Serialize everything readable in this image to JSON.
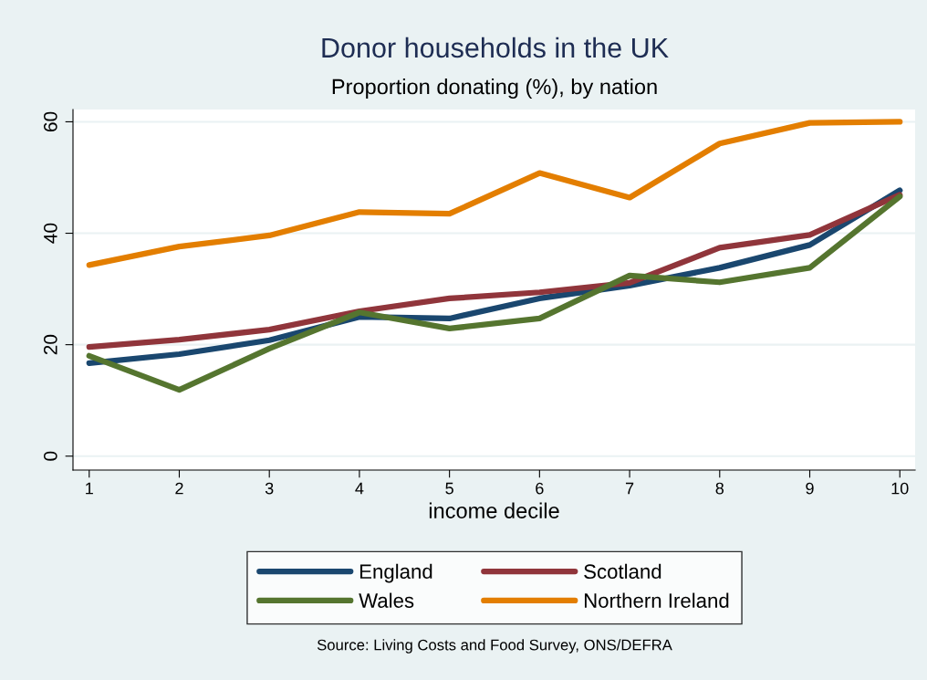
{
  "chart_data": {
    "type": "line",
    "title": "Donor households in the UK",
    "subtitle": "Proportion donating (%), by nation",
    "xlabel": "income decile",
    "x": [
      1,
      2,
      3,
      4,
      5,
      6,
      7,
      8,
      9,
      10
    ],
    "series": [
      {
        "name": "England",
        "color": "#1a476f",
        "values": [
          16.7,
          18.3,
          20.8,
          25.0,
          24.7,
          28.3,
          30.6,
          33.8,
          37.9,
          47.7
        ]
      },
      {
        "name": "Scotland",
        "color": "#90353b",
        "values": [
          19.6,
          20.9,
          22.7,
          26.0,
          28.3,
          29.4,
          31.1,
          37.4,
          39.7,
          46.9
        ]
      },
      {
        "name": "Wales",
        "color": "#55752f",
        "values": [
          18.0,
          11.9,
          19.3,
          25.8,
          22.9,
          24.7,
          32.4,
          31.2,
          33.8,
          46.6
        ]
      },
      {
        "name": "Northern Ireland",
        "color": "#e37e00",
        "values": [
          34.3,
          37.6,
          39.6,
          43.8,
          43.5,
          50.8,
          46.4,
          56.1,
          59.8,
          60.0
        ]
      }
    ],
    "xlim": [
      0.82,
      10.17
    ],
    "xticks": [
      1,
      2,
      3,
      4,
      5,
      6,
      7,
      8,
      9,
      10
    ],
    "ylim": [
      -2.5,
      62.2
    ],
    "yticks": [
      0,
      20,
      40,
      60
    ],
    "grid": "y",
    "legend": "bottom",
    "marker": "none",
    "line_style": "solid",
    "annotations": [
      "Source: Living Costs and Food Survey, ONS/DEFRA"
    ]
  }
}
